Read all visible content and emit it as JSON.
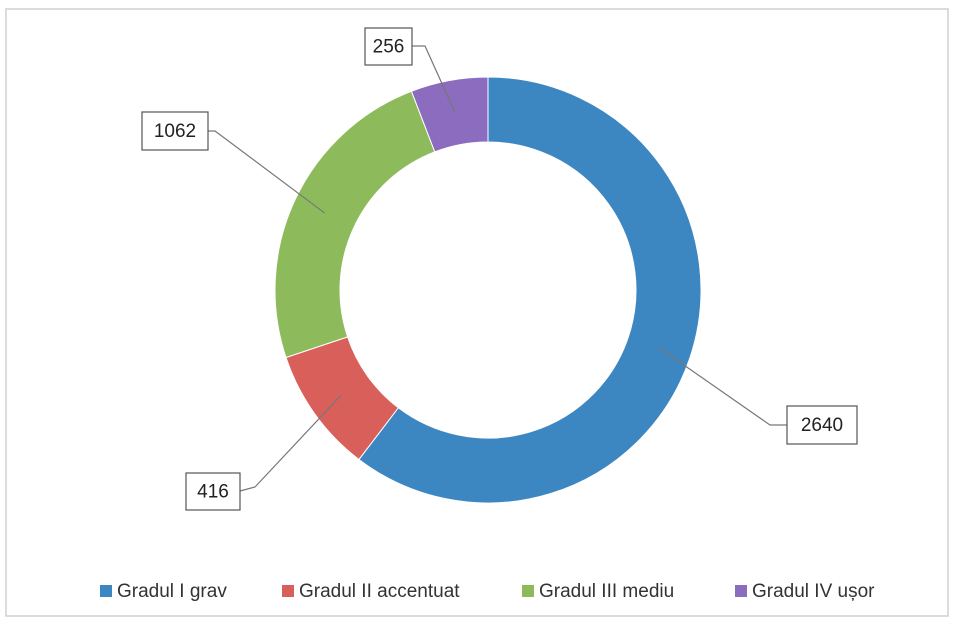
{
  "chart_data": {
    "type": "donut",
    "categories": [
      "Gradul I grav",
      "Gradul II accentuat",
      "Gradul III mediu",
      "Gradul IV ușor"
    ],
    "values": [
      2640,
      416,
      1062,
      256
    ],
    "colors": [
      "#3c87c2",
      "#d9605a",
      "#8dbb5c",
      "#8b6cbf"
    ],
    "legend": "bottom"
  }
}
